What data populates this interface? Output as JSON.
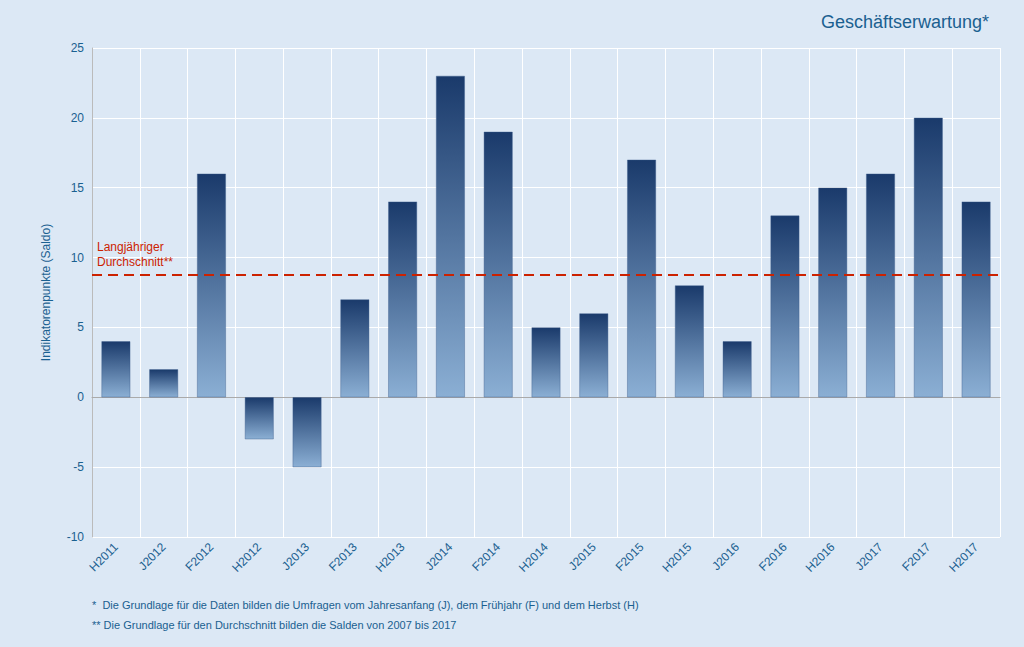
{
  "chart_data": {
    "type": "bar",
    "title": "Geschäftserwartung*",
    "categories": [
      "H2011",
      "J2012",
      "F2012",
      "H2012",
      "J2013",
      "F2013",
      "H2013",
      "J2014",
      "F2014",
      "H2014",
      "J2015",
      "F2015",
      "H2015",
      "J2016",
      "F2016",
      "H2016",
      "J2017",
      "F2017",
      "H2017"
    ],
    "values": [
      4,
      2,
      16,
      -3,
      -5,
      7,
      14,
      23,
      19,
      5,
      6,
      17,
      8,
      4,
      13,
      15,
      16,
      20,
      14
    ],
    "color": "#1a3a6b",
    "ylabel": "Indikatorenpunkte (Saldo)",
    "ylim": [
      -10,
      25
    ],
    "yticks": [
      -10,
      -5,
      0,
      5,
      10,
      15,
      20,
      25
    ],
    "grid": true,
    "reference_lines": [
      {
        "value": 8.8,
        "label_lines": [
          "Langjähriger",
          "Durchschnitt**"
        ],
        "color": "#cc2200",
        "line_style": "dashed"
      }
    ],
    "footnotes": [
      "*  Die Grundlage für die Daten bilden die Umfragen vom Jahresanfang (J), dem Frühjahr (F) und dem Herbst (H)",
      "** Die Grundlage für den Durchschnitt bilden die Salden von 2007 bis 2017"
    ]
  }
}
